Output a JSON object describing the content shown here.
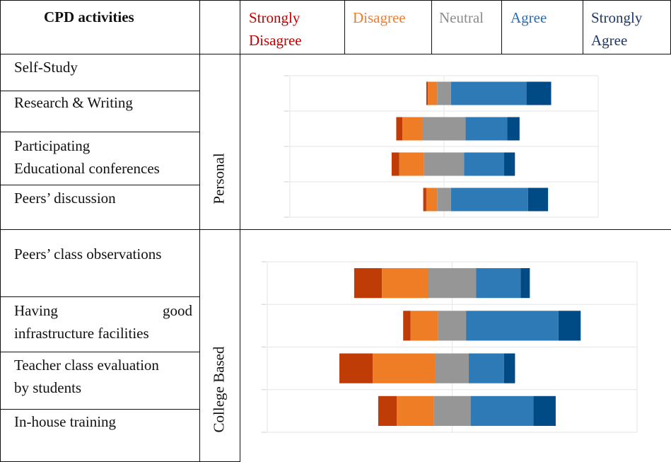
{
  "header": {
    "title": "CPD activities",
    "likert": [
      {
        "lines": [
          "Strongly",
          "Disagree"
        ],
        "color": "#c00000"
      },
      {
        "lines": [
          "Disagree"
        ],
        "color": "#ed7d31"
      },
      {
        "lines": [
          "Neutral"
        ],
        "color": "#8c8c8c"
      },
      {
        "lines": [
          "Agree"
        ],
        "color": "#2e6bb0"
      },
      {
        "lines": [
          "Strongly",
          "Agree"
        ],
        "color": "#1f3864"
      }
    ]
  },
  "groups": [
    {
      "label": "Personal",
      "activities": [
        [
          "Self-Study"
        ],
        [
          "Research & Writing"
        ],
        [
          "Participating",
          "Educational conferences"
        ],
        [
          "Peers’ discussion"
        ]
      ]
    },
    {
      "label": "College Based",
      "activities": [
        [
          "Peers’ class observations"
        ],
        [
          "Having",
          "good"
        ],
        [
          "infrastructure facilities"
        ],
        [
          "Teacher class evaluation",
          "by students"
        ],
        [
          "In-house training"
        ]
      ]
    }
  ],
  "colors": {
    "strongly_disagree": "#c03c07",
    "disagree": "#ee7d25",
    "neutral": "#969696",
    "agree": "#2e7ab7",
    "strongly_agree": "#004a86"
  },
  "chart_data": [
    {
      "type": "bar",
      "orientation": "horizontal-diverging",
      "categories": [
        "Self-Study",
        "Research & Writing",
        "Participating Educational conferences",
        "Peers’ discussion"
      ],
      "series": [
        {
          "name": "Strongly Disagree",
          "values": [
            1,
            4,
            5,
            2
          ]
        },
        {
          "name": "Disagree",
          "values": [
            6,
            13,
            16,
            7
          ]
        },
        {
          "name": "Neutral",
          "values": [
            9,
            28,
            26,
            9
          ]
        },
        {
          "name": "Agree",
          "values": [
            49,
            27,
            26,
            50
          ]
        },
        {
          "name": "Strongly Agree",
          "values": [
            16,
            8,
            7,
            13
          ]
        }
      ],
      "xlim": [
        -100,
        100
      ],
      "grid": true
    },
    {
      "type": "bar",
      "orientation": "horizontal-diverging",
      "categories": [
        "Peers’ class observations",
        "Having good infrastructure facilities",
        "Teacher class evaluation by students",
        "In-house training"
      ],
      "series": [
        {
          "name": "Strongly Disagree",
          "values": [
            15,
            4,
            18,
            10
          ]
        },
        {
          "name": "Disagree",
          "values": [
            25,
            15,
            34,
            20
          ]
        },
        {
          "name": "Neutral",
          "values": [
            26,
            15,
            18,
            20
          ]
        },
        {
          "name": "Agree",
          "values": [
            24,
            50,
            19,
            34
          ]
        },
        {
          "name": "Strongly Agree",
          "values": [
            5,
            12,
            6,
            12
          ]
        }
      ],
      "xlim": [
        -100,
        100
      ],
      "grid": true
    }
  ]
}
